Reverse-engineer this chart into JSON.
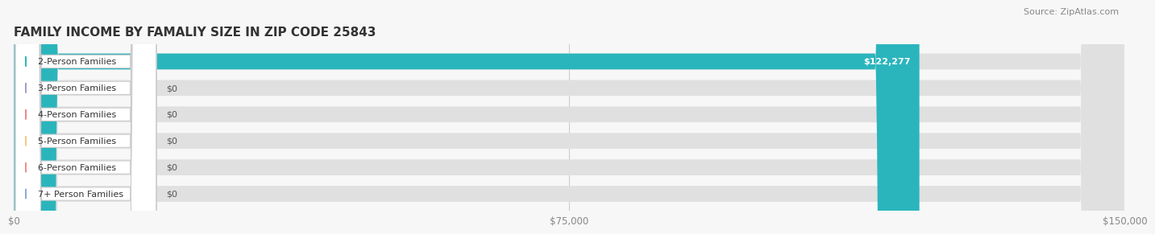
{
  "title": "FAMILY INCOME BY FAMALIY SIZE IN ZIP CODE 25843",
  "source": "Source: ZipAtlas.com",
  "categories": [
    "2-Person Families",
    "3-Person Families",
    "4-Person Families",
    "5-Person Families",
    "6-Person Families",
    "7+ Person Families"
  ],
  "values": [
    122277,
    0,
    0,
    0,
    0,
    0
  ],
  "bar_colors": [
    "#2ab5bc",
    "#a89cc8",
    "#f08888",
    "#f5c880",
    "#f09090",
    "#88aadd"
  ],
  "value_labels": [
    "$122,277",
    "$0",
    "$0",
    "$0",
    "$0",
    "$0"
  ],
  "xmax": 150000,
  "xticks": [
    0,
    75000,
    150000
  ],
  "xticklabels": [
    "$0",
    "$75,000",
    "$150,000"
  ],
  "background_color": "#f7f7f7",
  "bar_background_color": "#e0e0e0",
  "title_fontsize": 11,
  "source_fontsize": 8,
  "label_fontsize": 8,
  "value_fontsize": 8
}
